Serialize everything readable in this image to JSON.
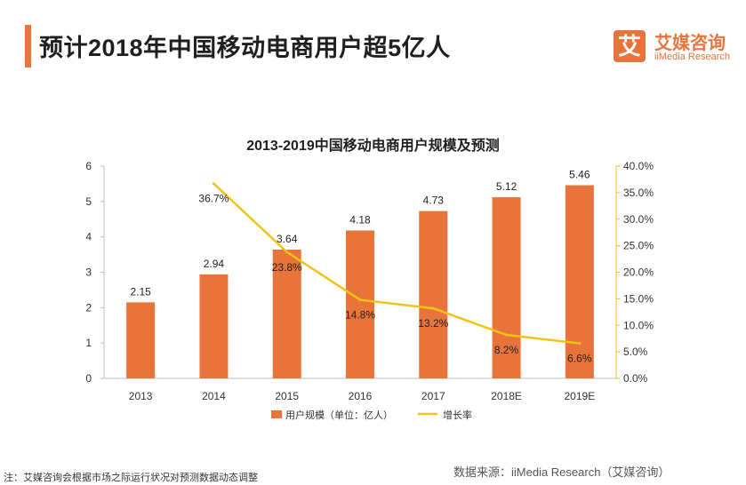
{
  "header": {
    "title": "预计2018年中国移动电商用户超5亿人"
  },
  "logo": {
    "mark": "艾",
    "name": "艾媒咨询",
    "sub": "iiMedia Research"
  },
  "footnote": "注：艾媒咨询会根据市场之际运行状况对预测数据动态调整",
  "source": "数据来源：iiMedia Research（艾媒咨询）",
  "chart_data": {
    "type": "bar",
    "title": "2013-2019中国移动电商用户规模及预测",
    "categories": [
      "2013",
      "2014",
      "2015",
      "2016",
      "2017",
      "2018E",
      "2019E"
    ],
    "series": [
      {
        "name": "用户规模（单位：亿人）",
        "type": "bar",
        "axis": "left",
        "color": "#e8743b",
        "values": [
          2.15,
          2.94,
          3.64,
          4.18,
          4.73,
          5.12,
          5.46
        ],
        "labels": [
          "2.15",
          "2.94",
          "3.64",
          "4.18",
          "4.73",
          "5.12",
          "5.46"
        ]
      },
      {
        "name": "增长率",
        "type": "line",
        "axis": "right",
        "color": "#f2c314",
        "values": [
          null,
          36.7,
          23.8,
          14.8,
          13.2,
          8.2,
          6.6
        ],
        "labels": [
          "",
          "36.7%",
          "23.8%",
          "14.8%",
          "13.2%",
          "8.2%",
          "6.6%"
        ]
      }
    ],
    "y_left": {
      "ylim": [
        0,
        6
      ],
      "ticks": [
        "0",
        "1",
        "2",
        "3",
        "4",
        "5",
        "6"
      ]
    },
    "y_right": {
      "ylim": [
        0,
        40
      ],
      "ticks": [
        "0.0%",
        "5.0%",
        "10.0%",
        "15.0%",
        "20.0%",
        "25.0%",
        "30.0%",
        "35.0%",
        "40.0%"
      ]
    },
    "grid": false,
    "legend": "bottom"
  }
}
